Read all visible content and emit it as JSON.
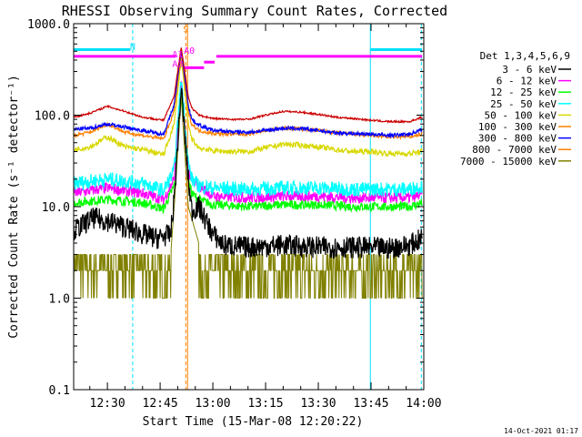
{
  "chart_data": {
    "type": "line",
    "title": "RHESSI Observing Summary Count Rates, Corrected",
    "xlabel": "Start Time (15-Mar-08 12:20:22)",
    "ylabel": "Corrected Count Rate (s⁻¹ detector⁻¹)",
    "y_scale": "log",
    "ylim": [
      0.1,
      1000
    ],
    "xlim_minutes_after_1200": [
      20.4,
      120
    ],
    "x_ticks": [
      {
        "label": "12:30",
        "minute": 30
      },
      {
        "label": "12:45",
        "minute": 45
      },
      {
        "label": "13:00",
        "minute": 60
      },
      {
        "label": "13:15",
        "minute": 75
      },
      {
        "label": "13:30",
        "minute": 90
      },
      {
        "label": "13:45",
        "minute": 105
      },
      {
        "label": "14:00",
        "minute": 120
      }
    ],
    "y_ticks": [
      {
        "label": "1000.0",
        "value": 1000
      },
      {
        "label": "100.0",
        "value": 100
      },
      {
        "label": "10.0",
        "value": 10
      },
      {
        "label": "1.0",
        "value": 1
      },
      {
        "label": "0.1",
        "value": 0.1
      }
    ],
    "legend_title": "Det 1,3,4,5,6,9",
    "legend_position": "right",
    "series": [
      {
        "name": "3 - 6 keV",
        "color": "#000000",
        "noise": 0.12,
        "points": [
          [
            20.4,
            5.5
          ],
          [
            26,
            7.5
          ],
          [
            30,
            7
          ],
          [
            35,
            6
          ],
          [
            40,
            5
          ],
          [
            44,
            4.5
          ],
          [
            48,
            5
          ],
          [
            49,
            12
          ],
          [
            51,
            200
          ],
          [
            53,
            20
          ],
          [
            54,
            9
          ],
          [
            56,
            10
          ],
          [
            58,
            7
          ],
          [
            60,
            5
          ],
          [
            63,
            3.8
          ],
          [
            70,
            3.6
          ],
          [
            80,
            3.8
          ],
          [
            90,
            3.6
          ],
          [
            100,
            3.6
          ],
          [
            110,
            3.5
          ],
          [
            116,
            3.8
          ],
          [
            119.5,
            4.5
          ]
        ]
      },
      {
        "name": "6 - 12 keV",
        "color": "#ff00ff",
        "noise": 0.06,
        "points": [
          [
            20.4,
            14
          ],
          [
            30,
            16
          ],
          [
            40,
            14
          ],
          [
            46,
            12
          ],
          [
            49,
            20
          ],
          [
            51,
            230
          ],
          [
            53,
            25
          ],
          [
            54,
            19
          ],
          [
            56,
            17
          ],
          [
            60,
            13
          ],
          [
            70,
            12.5
          ],
          [
            80,
            13
          ],
          [
            90,
            13
          ],
          [
            100,
            12.5
          ],
          [
            110,
            12.5
          ],
          [
            116,
            12.5
          ],
          [
            119.5,
            13.5
          ]
        ]
      },
      {
        "name": "12 - 25 keV",
        "color": "#00ff00",
        "noise": 0.05,
        "points": [
          [
            20.4,
            11
          ],
          [
            30,
            12
          ],
          [
            40,
            11
          ],
          [
            46,
            9.5
          ],
          [
            49,
            17
          ],
          [
            51,
            210
          ],
          [
            53,
            20
          ],
          [
            54,
            14
          ],
          [
            56,
            12
          ],
          [
            60,
            10.5
          ],
          [
            70,
            10
          ],
          [
            80,
            10.5
          ],
          [
            90,
            10.5
          ],
          [
            100,
            10
          ],
          [
            110,
            10
          ],
          [
            116,
            10
          ],
          [
            119.5,
            11
          ]
        ]
      },
      {
        "name": "25 - 50 keV",
        "color": "#00ffff",
        "noise": 0.08,
        "points": [
          [
            20.4,
            18
          ],
          [
            30,
            20
          ],
          [
            40,
            18
          ],
          [
            46,
            15
          ],
          [
            49,
            25
          ],
          [
            51,
            260
          ],
          [
            53,
            30
          ],
          [
            54,
            20
          ],
          [
            56,
            17
          ],
          [
            60,
            16
          ],
          [
            70,
            15.5
          ],
          [
            80,
            16
          ],
          [
            90,
            16
          ],
          [
            100,
            15.5
          ],
          [
            110,
            15.5
          ],
          [
            116,
            15.5
          ],
          [
            119.5,
            17
          ]
        ]
      },
      {
        "name": "50 - 100 keV",
        "color": "#d8d800",
        "noise": 0.03,
        "points": [
          [
            20.4,
            42
          ],
          [
            25,
            45
          ],
          [
            30,
            58
          ],
          [
            35,
            45
          ],
          [
            40,
            42
          ],
          [
            46,
            37
          ],
          [
            49,
            80
          ],
          [
            51,
            420
          ],
          [
            53,
            80
          ],
          [
            54,
            55
          ],
          [
            56,
            44
          ],
          [
            60,
            41
          ],
          [
            65,
            40
          ],
          [
            70,
            40
          ],
          [
            75,
            44
          ],
          [
            80,
            48
          ],
          [
            85,
            47
          ],
          [
            90,
            45
          ],
          [
            95,
            42
          ],
          [
            100,
            40
          ],
          [
            105,
            40
          ],
          [
            110,
            38
          ],
          [
            116,
            38
          ],
          [
            119.5,
            40
          ]
        ]
      },
      {
        "name": "100 - 300 keV",
        "color": "#ff8000",
        "noise": 0.02,
        "points": [
          [
            20.4,
            60
          ],
          [
            25,
            65
          ],
          [
            30,
            80
          ],
          [
            35,
            65
          ],
          [
            40,
            60
          ],
          [
            46,
            55
          ],
          [
            49,
            110
          ],
          [
            51,
            470
          ],
          [
            53,
            110
          ],
          [
            54,
            80
          ],
          [
            56,
            68
          ],
          [
            60,
            63
          ],
          [
            65,
            62
          ],
          [
            70,
            62
          ],
          [
            75,
            68
          ],
          [
            80,
            72
          ],
          [
            85,
            71
          ],
          [
            90,
            68
          ],
          [
            95,
            64
          ],
          [
            100,
            62
          ],
          [
            105,
            60
          ],
          [
            110,
            58
          ],
          [
            116,
            58
          ],
          [
            119.5,
            62
          ]
        ]
      },
      {
        "name": "300 - 800 keV",
        "color": "#0000ff",
        "noise": 0.02,
        "points": [
          [
            20.4,
            70
          ],
          [
            25,
            72
          ],
          [
            30,
            80
          ],
          [
            35,
            74
          ],
          [
            40,
            68
          ],
          [
            46,
            62
          ],
          [
            49,
            130
          ],
          [
            51,
            520
          ],
          [
            53,
            130
          ],
          [
            54,
            90
          ],
          [
            56,
            78
          ],
          [
            60,
            68
          ],
          [
            65,
            66
          ],
          [
            70,
            65
          ],
          [
            75,
            68
          ],
          [
            80,
            72
          ],
          [
            85,
            71
          ],
          [
            90,
            68
          ],
          [
            95,
            64
          ],
          [
            100,
            63
          ],
          [
            105,
            62
          ],
          [
            110,
            60
          ],
          [
            116,
            62
          ],
          [
            119.5,
            70
          ]
        ]
      },
      {
        "name": "800 - 7000 keV",
        "color": "#ff8000",
        "noise": 0.005,
        "points": [
          [
            20.4,
            0
          ]
        ]
      },
      {
        "name": "7000 - 15000 keV",
        "color": "#808000",
        "noise": 0,
        "points": [
          [
            20.4,
            3.0
          ],
          [
            40,
            3.0
          ],
          [
            48,
            3
          ],
          [
            49,
            10
          ],
          [
            51,
            160
          ],
          [
            53,
            10
          ],
          [
            56,
            4
          ],
          [
            60,
            3.0
          ],
          [
            119.5,
            3.0
          ]
        ]
      }
    ],
    "red_series": {
      "color": "#cc0000",
      "points": [
        [
          20.4,
          95
        ],
        [
          25,
          105
        ],
        [
          30,
          125
        ],
        [
          35,
          110
        ],
        [
          40,
          95
        ],
        [
          46,
          88
        ],
        [
          49,
          160
        ],
        [
          51,
          560
        ],
        [
          53,
          160
        ],
        [
          54,
          120
        ],
        [
          56,
          100
        ],
        [
          60,
          92
        ],
        [
          65,
          90
        ],
        [
          70,
          90
        ],
        [
          75,
          100
        ],
        [
          80,
          110
        ],
        [
          85,
          108
        ],
        [
          90,
          102
        ],
        [
          95,
          95
        ],
        [
          100,
          92
        ],
        [
          105,
          88
        ],
        [
          110,
          85
        ],
        [
          116,
          85
        ],
        [
          119.5,
          95
        ]
      ]
    },
    "annotations": [
      {
        "text": "N",
        "minute": 37.2,
        "value": 520,
        "color": "#00e0ff"
      },
      {
        "text": "S",
        "minute": 52.3,
        "value": 800,
        "color": "#ff8000"
      },
      {
        "text": "A1",
        "minute": 50.0,
        "value": 430,
        "color": "#ff00ff"
      },
      {
        "text": "A0",
        "minute": 53.3,
        "value": 470,
        "color": "#ff00ff"
      },
      {
        "text": "A3",
        "minute": 50.0,
        "value": 335,
        "color": "#ff00ff"
      }
    ],
    "timestamp": "14-Oct-2021 01:17"
  }
}
